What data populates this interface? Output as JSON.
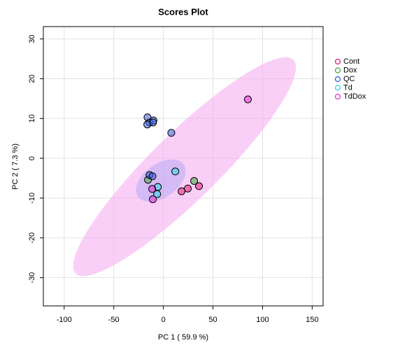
{
  "chart_data": {
    "type": "scatter",
    "title": "Scores Plot",
    "x_label": "PC 1 ( 59.9 %)",
    "y_label": "PC 2 ( 7.3 %)",
    "xlim": [
      -121,
      161
    ],
    "ylim": [
      -37.1,
      33.1
    ],
    "xticks": [
      -100,
      -50,
      0,
      50,
      100,
      150
    ],
    "yticks": [
      -30,
      -20,
      -10,
      0,
      10,
      20,
      30
    ],
    "grid": true,
    "legend": "right",
    "series": [
      {
        "name": "Cont",
        "color": "#e0207a",
        "x": [
          18.3,
          24.6,
          35.9
        ],
        "values": [
          -8.3,
          -7.6,
          -7.0
        ]
      },
      {
        "name": "Dox",
        "color": "#3faa3f",
        "x": [
          -15.5,
          31.0
        ],
        "values": [
          -5.4,
          -5.7
        ]
      },
      {
        "name": "QC",
        "color": "#3c5ed8",
        "x": [
          -16.0,
          -14.0,
          -10.0,
          -16.2,
          -10.5,
          8.0,
          -14.0,
          -11.0
        ],
        "values": [
          10.3,
          9.0,
          9.5,
          8.5,
          9.0,
          6.4,
          -4.2,
          -4.5
        ]
      },
      {
        "name": "Td",
        "color": "#30d8e8",
        "x": [
          12.0,
          -5.6,
          -6.3
        ],
        "values": [
          -3.3,
          -7.2,
          -9.0
        ]
      },
      {
        "name": "TdDox",
        "color": "#e030d0",
        "x": [
          -11.3,
          -10.6,
          85.2
        ],
        "values": [
          -7.7,
          -10.3,
          14.8
        ]
      }
    ]
  }
}
